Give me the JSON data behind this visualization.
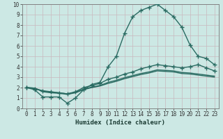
{
  "xlabel": "Humidex (Indice chaleur)",
  "ylabel": "",
  "xlim": [
    -0.5,
    23.5
  ],
  "ylim": [
    0,
    10
  ],
  "bg_color": "#cce8e4",
  "grid_color": "#c8b8be",
  "line_color": "#2a6b62",
  "series": [
    {
      "x": [
        0,
        1,
        2,
        3,
        4,
        5,
        6,
        7,
        8,
        9,
        10,
        11,
        12,
        13,
        14,
        15,
        16,
        17,
        18,
        19,
        20,
        21,
        22,
        23
      ],
      "y": [
        2.0,
        1.8,
        1.1,
        1.1,
        1.1,
        0.5,
        1.0,
        1.8,
        2.3,
        2.5,
        4.0,
        5.0,
        7.2,
        8.8,
        9.4,
        9.7,
        10.0,
        9.4,
        8.8,
        7.8,
        6.1,
        5.0,
        4.8,
        4.2
      ],
      "marker": "+",
      "markersize": 4,
      "lw": 1.0
    },
    {
      "x": [
        0,
        1,
        2,
        3,
        4,
        5,
        6,
        7,
        8,
        9,
        10,
        11,
        12,
        13,
        14,
        15,
        16,
        17,
        18,
        19,
        20,
        21,
        22,
        23
      ],
      "y": [
        2.0,
        1.95,
        1.6,
        1.5,
        1.45,
        1.35,
        1.5,
        1.8,
        2.0,
        2.15,
        2.4,
        2.6,
        2.85,
        3.05,
        3.25,
        3.4,
        3.6,
        3.55,
        3.5,
        3.35,
        3.3,
        3.2,
        3.1,
        3.0
      ],
      "marker": null,
      "markersize": 0,
      "lw": 1.0
    },
    {
      "x": [
        0,
        1,
        2,
        3,
        4,
        5,
        6,
        7,
        8,
        9,
        10,
        11,
        12,
        13,
        14,
        15,
        16,
        17,
        18,
        19,
        20,
        21,
        22,
        23
      ],
      "y": [
        2.0,
        1.95,
        1.65,
        1.55,
        1.5,
        1.4,
        1.55,
        1.85,
        2.05,
        2.2,
        2.5,
        2.7,
        2.95,
        3.15,
        3.35,
        3.5,
        3.7,
        3.65,
        3.6,
        3.45,
        3.4,
        3.3,
        3.2,
        3.1
      ],
      "marker": null,
      "markersize": 0,
      "lw": 1.0
    },
    {
      "x": [
        0,
        1,
        2,
        3,
        4,
        5,
        6,
        7,
        8,
        9,
        10,
        11,
        12,
        13,
        14,
        15,
        16,
        17,
        18,
        19,
        20,
        21,
        22,
        23
      ],
      "y": [
        2.0,
        1.9,
        1.7,
        1.6,
        1.5,
        1.4,
        1.6,
        2.0,
        2.2,
        2.4,
        2.8,
        3.0,
        3.3,
        3.5,
        3.8,
        4.0,
        4.2,
        4.1,
        4.0,
        3.9,
        4.0,
        4.2,
        3.9,
        3.6
      ],
      "marker": "+",
      "markersize": 4,
      "lw": 1.0
    }
  ],
  "xtick_labels": [
    "0",
    "1",
    "2",
    "3",
    "4",
    "5",
    "6",
    "7",
    "8",
    "9",
    "10",
    "11",
    "12",
    "13",
    "14",
    "15",
    "16",
    "17",
    "18",
    "19",
    "20",
    "21",
    "22",
    "23"
  ],
  "ytick_labels": [
    "0",
    "1",
    "2",
    "3",
    "4",
    "5",
    "6",
    "7",
    "8",
    "9",
    "10"
  ],
  "tick_fontsize": 5.5,
  "xlabel_fontsize": 6.5
}
